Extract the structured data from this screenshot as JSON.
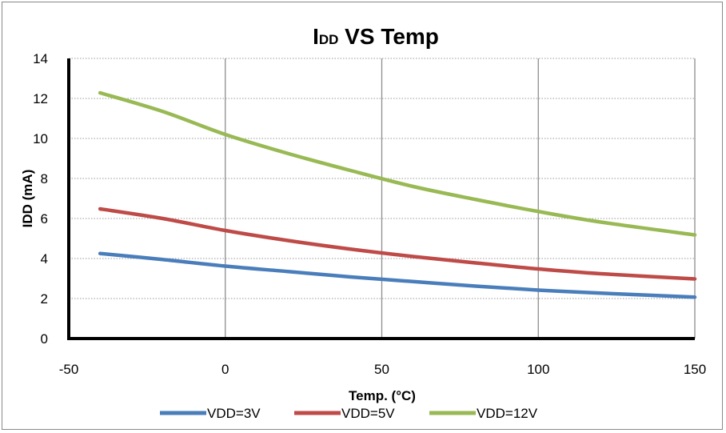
{
  "chart_data": {
    "type": "line",
    "title": "IDD VS Temp",
    "title_parts": {
      "main": "I",
      "subscript": "DD",
      "rest": " VS Temp"
    },
    "xlabel": "Temp. (°C)",
    "ylabel": "IDD (mA)",
    "xlim": [
      -50,
      150
    ],
    "ylim": [
      0,
      14
    ],
    "x_ticks": [
      -50,
      0,
      50,
      100,
      150
    ],
    "y_ticks": [
      0,
      2,
      4,
      6,
      8,
      10,
      12,
      14
    ],
    "grid": {
      "vertical": true,
      "horizontal": "dotted"
    },
    "legend_position": "bottom",
    "x": [
      -40,
      -20,
      0,
      20,
      40,
      60,
      80,
      100,
      120,
      150
    ],
    "series": [
      {
        "name": "VDD=3V",
        "color": "#4a7ebb",
        "values": [
          4.25,
          3.95,
          3.62,
          3.35,
          3.08,
          2.85,
          2.62,
          2.42,
          2.27,
          2.07
        ]
      },
      {
        "name": "VDD=5V",
        "color": "#be4b48",
        "values": [
          6.48,
          6.0,
          5.4,
          4.9,
          4.47,
          4.1,
          3.78,
          3.48,
          3.24,
          2.98
        ]
      },
      {
        "name": "VDD=12V",
        "color": "#98b954",
        "values": [
          12.28,
          11.35,
          10.2,
          9.25,
          8.4,
          7.6,
          6.95,
          6.35,
          5.82,
          5.18
        ]
      }
    ]
  }
}
